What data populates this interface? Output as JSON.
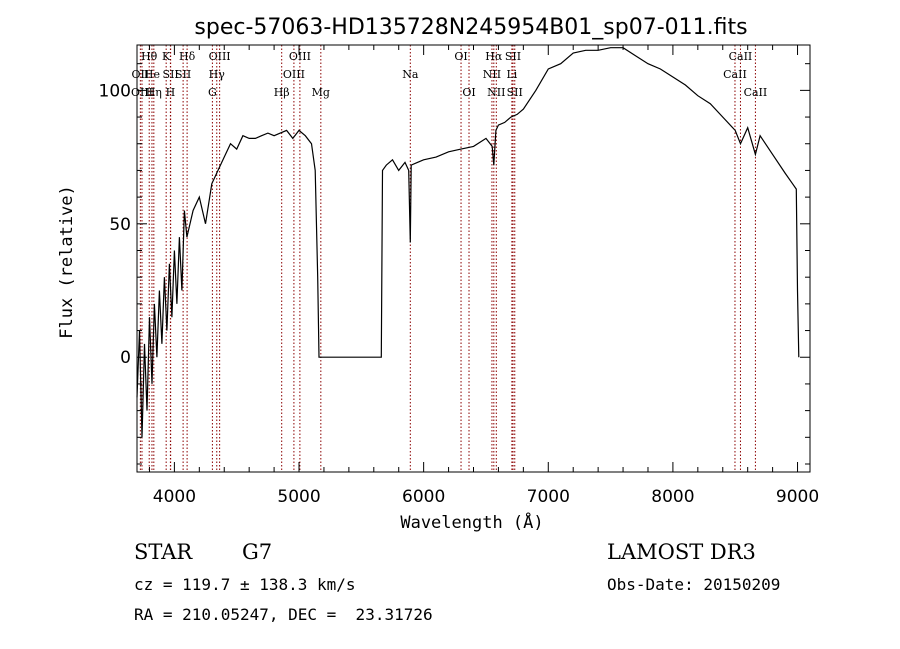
{
  "chart_data": {
    "type": "line",
    "title": "spec-57063-HD135728N245954B01_sp07-011.fits",
    "xlabel": "Wavelength (Å)",
    "ylabel": "Flux (relative)",
    "xlim": [
      3700,
      9100
    ],
    "ylim": [
      -43,
      117
    ],
    "xticks": [
      4000,
      5000,
      6000,
      7000,
      8000,
      9000
    ],
    "yticks": [
      0,
      50,
      100
    ],
    "grid": false,
    "line_color": "#000000",
    "marker_color": "#8b0000",
    "spectrum": {
      "x": [
        3700,
        3720,
        3740,
        3760,
        3780,
        3800,
        3820,
        3840,
        3860,
        3880,
        3900,
        3920,
        3940,
        3960,
        3980,
        4000,
        4020,
        4040,
        4060,
        4080,
        4100,
        4150,
        4200,
        4250,
        4300,
        4350,
        4400,
        4450,
        4500,
        4550,
        4600,
        4650,
        4700,
        4750,
        4800,
        4850,
        4900,
        4950,
        5000,
        5050,
        5100,
        5130,
        5150,
        5160,
        5200,
        5300,
        5400,
        5500,
        5600,
        5660,
        5670,
        5700,
        5750,
        5800,
        5850,
        5880,
        5893,
        5900,
        5950,
        6000,
        6100,
        6200,
        6300,
        6400,
        6500,
        6550,
        6563,
        6580,
        6600,
        6650,
        6700,
        6750,
        6800,
        6900,
        7000,
        7100,
        7200,
        7300,
        7400,
        7500,
        7600,
        7700,
        7800,
        7900,
        8000,
        8100,
        8200,
        8300,
        8400,
        8500,
        8542,
        8600,
        8662,
        8700,
        8800,
        8900,
        8960,
        8990,
        9000,
        9010
      ],
      "y": [
        -15,
        10,
        -30,
        5,
        -20,
        15,
        -10,
        20,
        0,
        25,
        5,
        30,
        10,
        35,
        15,
        40,
        20,
        45,
        25,
        55,
        45,
        55,
        60,
        50,
        65,
        70,
        75,
        80,
        78,
        83,
        82,
        82,
        83,
        84,
        83,
        84,
        85,
        82,
        85,
        83,
        80,
        70,
        30,
        0,
        0,
        0,
        0,
        0,
        0,
        0,
        70,
        72,
        74,
        70,
        73,
        70,
        43,
        72,
        73,
        74,
        75,
        77,
        78,
        79,
        82,
        79,
        72,
        85,
        87,
        88,
        90,
        91,
        93,
        100,
        108,
        110,
        114,
        115,
        115,
        116,
        116,
        113,
        110,
        108,
        105,
        102,
        98,
        95,
        90,
        85,
        80,
        86,
        76,
        83,
        76,
        69,
        65,
        63,
        25,
        0
      ]
    },
    "lines": [
      {
        "label": "Hθ",
        "x": 3798,
        "row": 1
      },
      {
        "label": "OII",
        "x": 3727,
        "row": 2
      },
      {
        "label": "OIII",
        "x": 3740,
        "row": 3
      },
      {
        "label": "He",
        "x": 3820,
        "row": 2
      },
      {
        "label": "Hη",
        "x": 3835,
        "row": 3
      },
      {
        "label": "K",
        "x": 3934,
        "row": 1
      },
      {
        "label": "SII",
        "x": 3970,
        "row": 2
      },
      {
        "label": "H",
        "x": 3968,
        "row": 3
      },
      {
        "label": "Hδ",
        "x": 4102,
        "row": 1
      },
      {
        "label": "SII",
        "x": 4070,
        "row": 2
      },
      {
        "label": "OIII",
        "x": 4363,
        "row": 1
      },
      {
        "label": "Hγ",
        "x": 4340,
        "row": 2
      },
      {
        "label": "G",
        "x": 4305,
        "row": 3
      },
      {
        "label": "Hβ",
        "x": 4861,
        "row": 3
      },
      {
        "label": "OIII",
        "x": 5007,
        "row": 1
      },
      {
        "label": "OIII",
        "x": 4959,
        "row": 2
      },
      {
        "label": "Mg",
        "x": 5175,
        "row": 3
      },
      {
        "label": "Na",
        "x": 5893,
        "row": 2
      },
      {
        "label": "OI",
        "x": 6300,
        "row": 1
      },
      {
        "label": "OI",
        "x": 6364,
        "row": 3
      },
      {
        "label": "Hα",
        "x": 6563,
        "row": 1
      },
      {
        "label": "NII",
        "x": 6548,
        "row": 2
      },
      {
        "label": "NII",
        "x": 6583,
        "row": 3
      },
      {
        "label": "SII",
        "x": 6717,
        "row": 1
      },
      {
        "label": "Li",
        "x": 6708,
        "row": 2
      },
      {
        "label": "SII",
        "x": 6731,
        "row": 3
      },
      {
        "label": "CaII",
        "x": 8542,
        "row": 1
      },
      {
        "label": "CaII",
        "x": 8498,
        "row": 2
      },
      {
        "label": "CaII",
        "x": 8662,
        "row": 3
      }
    ]
  },
  "info": {
    "class_label": "STAR",
    "subclass": "G7",
    "survey": "LAMOST DR3",
    "cz": "cz = 119.7 ± 138.3 km/s",
    "obs_date": "Obs-Date: 20150209",
    "radec": "RA = 210.05247, DEC =  23.31726"
  }
}
